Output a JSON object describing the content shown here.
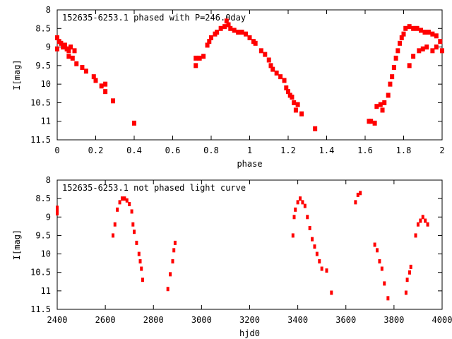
{
  "chart_data": [
    {
      "type": "scatter",
      "title": "152635-6253.1 phased with P=246.0day",
      "xlabel": "phase",
      "ylabel": "I[mag]",
      "xlim": [
        0,
        2
      ],
      "ylim": [
        11.5,
        8
      ],
      "y_inverted": true,
      "xticks": [
        "0",
        "0.2",
        "0.4",
        "0.6",
        "0.8",
        "1",
        "1.2",
        "1.4",
        "1.6",
        "1.8",
        "2"
      ],
      "yticks": [
        "8",
        "8.5",
        "9",
        "9.5",
        "10",
        "10.5",
        "11",
        "11.5"
      ],
      "grid": false,
      "color": "#ff0000",
      "points": [
        [
          0,
          8.75
        ],
        [
          0,
          9.05
        ],
        [
          0.01,
          8.85
        ],
        [
          0.02,
          8.9
        ],
        [
          0.03,
          9.0
        ],
        [
          0.04,
          8.95
        ],
        [
          0.05,
          9.05
        ],
        [
          0.06,
          9.1
        ],
        [
          0.07,
          9.0
        ],
        [
          0.08,
          9.3
        ],
        [
          0.06,
          9.25
        ],
        [
          0.09,
          9.1
        ],
        [
          0.1,
          9.45
        ],
        [
          0.13,
          9.55
        ],
        [
          0.15,
          9.65
        ],
        [
          0.19,
          9.8
        ],
        [
          0.2,
          9.9
        ],
        [
          0.23,
          10.05
        ],
        [
          0.25,
          10.0
        ],
        [
          0.25,
          10.2
        ],
        [
          0.29,
          10.45
        ],
        [
          0.4,
          11.05
        ],
        [
          0.72,
          9.5
        ],
        [
          0.72,
          9.3
        ],
        [
          0.74,
          9.3
        ],
        [
          0.76,
          9.25
        ],
        [
          0.78,
          8.95
        ],
        [
          0.79,
          8.85
        ],
        [
          0.8,
          8.75
        ],
        [
          0.82,
          8.65
        ],
        [
          0.83,
          8.6
        ],
        [
          0.85,
          8.5
        ],
        [
          0.87,
          8.45
        ],
        [
          0.88,
          8.3
        ],
        [
          0.89,
          8.4
        ],
        [
          0.9,
          8.5
        ],
        [
          0.92,
          8.55
        ],
        [
          0.94,
          8.6
        ],
        [
          0.96,
          8.6
        ],
        [
          0.98,
          8.65
        ],
        [
          1.0,
          8.75
        ],
        [
          1.02,
          8.85
        ],
        [
          1.03,
          8.9
        ],
        [
          1.06,
          9.1
        ],
        [
          1.08,
          9.2
        ],
        [
          1.1,
          9.35
        ],
        [
          1.11,
          9.5
        ],
        [
          1.12,
          9.6
        ],
        [
          1.14,
          9.7
        ],
        [
          1.16,
          9.8
        ],
        [
          1.18,
          9.9
        ],
        [
          1.19,
          10.1
        ],
        [
          1.2,
          10.2
        ],
        [
          1.21,
          10.3
        ],
        [
          1.22,
          10.35
        ],
        [
          1.23,
          10.5
        ],
        [
          1.24,
          10.7
        ],
        [
          1.25,
          10.55
        ],
        [
          1.27,
          10.8
        ],
        [
          1.34,
          11.2
        ],
        [
          1.62,
          11.0
        ],
        [
          1.63,
          11.0
        ],
        [
          1.65,
          11.05
        ],
        [
          1.66,
          10.6
        ],
        [
          1.68,
          10.55
        ],
        [
          1.69,
          10.7
        ],
        [
          1.7,
          10.5
        ],
        [
          1.72,
          10.3
        ],
        [
          1.73,
          10.0
        ],
        [
          1.74,
          9.8
        ],
        [
          1.75,
          9.55
        ],
        [
          1.76,
          9.3
        ],
        [
          1.77,
          9.1
        ],
        [
          1.78,
          8.9
        ],
        [
          1.79,
          8.75
        ],
        [
          1.8,
          8.65
        ],
        [
          1.81,
          8.5
        ],
        [
          1.83,
          8.45
        ],
        [
          1.85,
          8.5
        ],
        [
          1.87,
          8.5
        ],
        [
          1.89,
          8.55
        ],
        [
          1.91,
          8.6
        ],
        [
          1.93,
          8.6
        ],
        [
          1.95,
          8.65
        ],
        [
          1.97,
          8.7
        ],
        [
          1.99,
          8.85
        ],
        [
          1.85,
          9.25
        ],
        [
          1.83,
          9.5
        ],
        [
          1.88,
          9.1
        ],
        [
          1.9,
          9.05
        ],
        [
          1.92,
          9.0
        ],
        [
          1.95,
          9.1
        ],
        [
          1.97,
          9.0
        ],
        [
          2.0,
          9.1
        ]
      ]
    },
    {
      "type": "scatter",
      "title": "152635-6253.1 not phased light curve",
      "xlabel": "hjd0",
      "ylabel": "I[mag]",
      "xlim": [
        2400,
        4000
      ],
      "ylim": [
        11.5,
        8
      ],
      "y_inverted": true,
      "xticks": [
        "2400",
        "2600",
        "2800",
        "3000",
        "3200",
        "3400",
        "3600",
        "3800",
        "4000"
      ],
      "yticks": [
        "8",
        "8.5",
        "9",
        "9.5",
        "10",
        "10.5",
        "11",
        "11.5"
      ],
      "grid": false,
      "color": "#ff0000",
      "points": [
        [
          2400,
          8.75
        ],
        [
          2400,
          8.9
        ],
        [
          2400,
          8.8
        ],
        [
          2632,
          9.5
        ],
        [
          2640,
          9.2
        ],
        [
          2650,
          8.8
        ],
        [
          2660,
          8.6
        ],
        [
          2670,
          8.5
        ],
        [
          2680,
          8.5
        ],
        [
          2690,
          8.55
        ],
        [
          2700,
          8.65
        ],
        [
          2710,
          8.85
        ],
        [
          2715,
          9.2
        ],
        [
          2720,
          9.4
        ],
        [
          2730,
          9.7
        ],
        [
          2740,
          10.0
        ],
        [
          2745,
          10.2
        ],
        [
          2750,
          10.4
        ],
        [
          2755,
          10.7
        ],
        [
          2860,
          10.95
        ],
        [
          2870,
          10.55
        ],
        [
          2880,
          10.2
        ],
        [
          2885,
          9.9
        ],
        [
          2890,
          9.7
        ],
        [
          3380,
          9.5
        ],
        [
          3385,
          9.0
        ],
        [
          3390,
          8.8
        ],
        [
          3400,
          8.6
        ],
        [
          3410,
          8.5
        ],
        [
          3420,
          8.6
        ],
        [
          3430,
          8.7
        ],
        [
          3440,
          9.0
        ],
        [
          3450,
          9.3
        ],
        [
          3460,
          9.6
        ],
        [
          3470,
          9.8
        ],
        [
          3480,
          10.0
        ],
        [
          3490,
          10.2
        ],
        [
          3500,
          10.4
        ],
        [
          3520,
          10.45
        ],
        [
          3540,
          11.05
        ],
        [
          3640,
          8.6
        ],
        [
          3650,
          8.4
        ],
        [
          3660,
          8.35
        ],
        [
          3720,
          9.75
        ],
        [
          3730,
          9.9
        ],
        [
          3740,
          10.2
        ],
        [
          3750,
          10.4
        ],
        [
          3760,
          10.8
        ],
        [
          3775,
          11.2
        ],
        [
          3850,
          11.05
        ],
        [
          3855,
          10.7
        ],
        [
          3865,
          10.5
        ],
        [
          3870,
          10.35
        ],
        [
          3890,
          9.5
        ],
        [
          3900,
          9.2
        ],
        [
          3910,
          9.1
        ],
        [
          3920,
          9.0
        ],
        [
          3930,
          9.1
        ],
        [
          3940,
          9.2
        ]
      ]
    }
  ]
}
